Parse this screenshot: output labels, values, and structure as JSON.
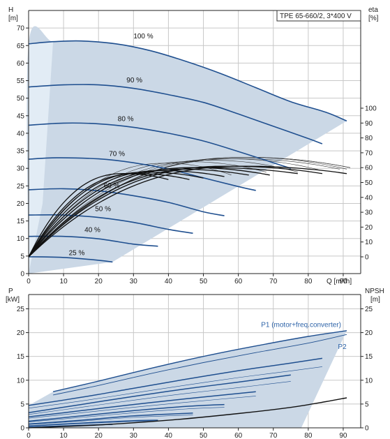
{
  "title": "TPE 65-660/2, 3*400 V",
  "colors": {
    "curve_blue": "#1f4f8f",
    "envelope_fill": "#cbd8e6",
    "envelope_edge": "#e2ecf5",
    "eta_line": "#333333",
    "black_curve": "#111111",
    "grid": "#c8c8c8",
    "label_blue": "#2d63a8"
  },
  "chart_data": [
    {
      "type": "line",
      "panel": "head-efficiency",
      "left_axis": {
        "label_line1": "H",
        "label_line2": "[m]",
        "ylim": [
          0,
          75
        ],
        "ticks": [
          0,
          5,
          10,
          15,
          20,
          25,
          30,
          35,
          40,
          45,
          50,
          55,
          60,
          65,
          70
        ]
      },
      "right_axis": {
        "label_line1": "eta",
        "label_line2": "[%]",
        "ticks": [
          0,
          10,
          20,
          30,
          40,
          50,
          60,
          70,
          80,
          90,
          100
        ]
      },
      "x_axis": {
        "label": "Q [m³/h]",
        "xlim": [
          0,
          95
        ],
        "ticks": [
          0,
          10,
          20,
          30,
          40,
          50,
          60,
          70,
          80,
          90
        ]
      },
      "speed_curves": [
        {
          "name": "100 %",
          "points": [
            [
              0,
              65.5
            ],
            [
              7,
              66.1
            ],
            [
              15,
              66.3
            ],
            [
              25,
              65.5
            ],
            [
              35,
              63.5
            ],
            [
              45,
              60.5
            ],
            [
              55,
              57
            ],
            [
              65,
              53
            ],
            [
              75,
              49
            ],
            [
              85,
              46
            ],
            [
              91,
              43.5
            ]
          ]
        },
        {
          "name": "90 %",
          "points": [
            [
              0,
              53.2
            ],
            [
              10,
              53.8
            ],
            [
              20,
              53.8
            ],
            [
              30,
              52.8
            ],
            [
              40,
              51
            ],
            [
              50,
              48.8
            ],
            [
              60,
              45.5
            ],
            [
              70,
              42
            ],
            [
              80,
              38.5
            ],
            [
              84,
              37
            ]
          ]
        },
        {
          "name": "80 %",
          "points": [
            [
              0,
              42.3
            ],
            [
              10,
              42.9
            ],
            [
              20,
              42.7
            ],
            [
              30,
              41.7
            ],
            [
              40,
              40
            ],
            [
              50,
              37.8
            ],
            [
              60,
              34.8
            ],
            [
              70,
              31.6
            ],
            [
              75,
              30
            ]
          ]
        },
        {
          "name": "70 %",
          "points": [
            [
              0,
              32.6
            ],
            [
              8,
              33
            ],
            [
              20,
              32.7
            ],
            [
              30,
              31.6
            ],
            [
              40,
              29.8
            ],
            [
              50,
              27.3
            ],
            [
              60,
              24.8
            ],
            [
              65,
              23.7
            ]
          ]
        },
        {
          "name": "60 %",
          "points": [
            [
              0,
              23.9
            ],
            [
              10,
              24.2
            ],
            [
              20,
              23.6
            ],
            [
              30,
              22.2
            ],
            [
              40,
              20.3
            ],
            [
              50,
              17.6
            ],
            [
              56,
              16.5
            ]
          ]
        },
        {
          "name": "50 %",
          "points": [
            [
              0,
              16.7
            ],
            [
              10,
              16.7
            ],
            [
              20,
              16
            ],
            [
              30,
              14.6
            ],
            [
              40,
              12.6
            ],
            [
              47,
              11.5
            ]
          ]
        },
        {
          "name": "40 %",
          "points": [
            [
              0,
              10.6
            ],
            [
              10,
              10.6
            ],
            [
              20,
              9.9
            ],
            [
              30,
              8.4
            ],
            [
              37,
              7.8
            ]
          ]
        },
        {
          "name": "25 %",
          "points": [
            [
              0,
              4.8
            ],
            [
              10,
              4.6
            ],
            [
              20,
              3.8
            ],
            [
              24,
              3.3
            ]
          ]
        }
      ],
      "curve_labels": [
        {
          "text": "100 %",
          "x": 30,
          "y": 67
        },
        {
          "text": "90 %",
          "x": 28,
          "y": 54.5
        },
        {
          "text": "80 %",
          "x": 25.5,
          "y": 43.5
        },
        {
          "text": "70 %",
          "x": 23,
          "y": 33.5
        },
        {
          "text": "60 %",
          "x": 21.5,
          "y": 24.5
        },
        {
          "text": "50 %",
          "x": 19,
          "y": 17.8
        },
        {
          "text": "40 %",
          "x": 16,
          "y": 11.8
        },
        {
          "text": "25 %",
          "x": 11.5,
          "y": 5.3
        }
      ],
      "envelope": [
        [
          0,
          0
        ],
        [
          0,
          65.5
        ],
        [
          7,
          66.1
        ],
        [
          15,
          66.3
        ],
        [
          25,
          65.5
        ],
        [
          35,
          63.5
        ],
        [
          45,
          60.5
        ],
        [
          55,
          57
        ],
        [
          65,
          53
        ],
        [
          75,
          49
        ],
        [
          85,
          46
        ],
        [
          91,
          43.5
        ],
        [
          24,
          3.3
        ],
        [
          0,
          0
        ]
      ],
      "eta_curves_percent": {
        "qmax": [
          58,
          68,
          77,
          84,
          89,
          91,
          92,
          92
        ],
        "peak": [
          63,
          64,
          65,
          66,
          66,
          67,
          67,
          67
        ],
        "end": [
          55,
          57,
          57,
          58,
          59,
          59,
          60,
          60
        ]
      },
      "black_curves_percent": {
        "qmax": [
          40,
          46,
          50,
          56,
          63,
          69,
          77,
          84,
          91
        ],
        "peak": [
          56,
          56,
          57,
          58,
          59,
          60,
          60,
          61,
          61
        ],
        "end": [
          52,
          52,
          53,
          54,
          55,
          55,
          56,
          56,
          56
        ]
      }
    },
    {
      "type": "line",
      "panel": "power-npsh",
      "left_axis": {
        "label_line1": "P",
        "label_line2": "[kW]",
        "ylim": [
          0,
          28
        ],
        "ticks": [
          0,
          5,
          10,
          15,
          20,
          25
        ]
      },
      "right_axis": {
        "label_line1": "NPSH",
        "label_line2": "[m]",
        "ticks": [
          0,
          5,
          10,
          15,
          20,
          25
        ]
      },
      "x_axis": {
        "xlim": [
          0,
          95
        ],
        "ticks": [
          0,
          10,
          20,
          30,
          40,
          50,
          60,
          70,
          80,
          90
        ]
      },
      "p1_curves": [
        {
          "name": "P1 (motor+freq.converter)",
          "points": [
            [
              7,
              7.6
            ],
            [
              20,
              9.8
            ],
            [
              35,
              12.5
            ],
            [
              50,
              15
            ],
            [
              65,
              17.2
            ],
            [
              80,
              19.2
            ],
            [
              91,
              20.4
            ]
          ]
        },
        {
          "name": "P2",
          "points": [
            [
              7,
              6.9
            ],
            [
              20,
              8.9
            ],
            [
              35,
              11.4
            ],
            [
              50,
              13.7
            ],
            [
              65,
              15.8
            ],
            [
              80,
              17.8
            ],
            [
              91,
              19.6
            ]
          ]
        },
        {
          "points": [
            [
              0,
              4.7
            ],
            [
              15,
              6.4
            ],
            [
              30,
              8.3
            ],
            [
              45,
              10.2
            ],
            [
              60,
              12
            ],
            [
              75,
              13.6
            ],
            [
              84,
              14.6
            ]
          ]
        },
        {
          "points": [
            [
              0,
              3.2
            ],
            [
              15,
              4.9
            ],
            [
              30,
              6.6
            ],
            [
              45,
              8.2
            ],
            [
              60,
              9.6
            ],
            [
              75,
              11.1
            ]
          ]
        },
        {
          "points": [
            [
              0,
              2.3
            ],
            [
              15,
              3.6
            ],
            [
              30,
              4.9
            ],
            [
              45,
              6.1
            ],
            [
              65,
              7.6
            ]
          ]
        },
        {
          "points": [
            [
              0,
              1.4
            ],
            [
              15,
              2.5
            ],
            [
              30,
              3.6
            ],
            [
              45,
              4.5
            ],
            [
              56,
              4.9
            ]
          ]
        },
        {
          "points": [
            [
              0,
              0.8
            ],
            [
              15,
              1.6
            ],
            [
              30,
              2.5
            ],
            [
              47,
              3.1
            ]
          ]
        },
        {
          "points": [
            [
              0,
              0.4
            ],
            [
              15,
              1
            ],
            [
              30,
              1.5
            ],
            [
              37,
              1.6
            ]
          ]
        },
        {
          "points": [
            [
              0,
              0.15
            ],
            [
              12,
              0.45
            ],
            [
              24,
              0.75
            ]
          ]
        }
      ],
      "p_envelope": [
        [
          7,
          7.6
        ],
        [
          20,
          9.8
        ],
        [
          35,
          12.5
        ],
        [
          50,
          15
        ],
        [
          65,
          17.2
        ],
        [
          80,
          19.2
        ],
        [
          91,
          20.4
        ],
        [
          78,
          0
        ],
        [
          0,
          0
        ],
        [
          0,
          4.7
        ]
      ],
      "npsh_curve": [
        [
          0,
          0
        ],
        [
          20,
          0.6
        ],
        [
          40,
          1.6
        ],
        [
          60,
          3
        ],
        [
          75,
          4.3
        ],
        [
          85,
          5.5
        ],
        [
          91,
          6.3
        ]
      ],
      "annotations": [
        {
          "text": "P1 (motor+freq.converter)",
          "x": 66.5,
          "y": 21.2
        },
        {
          "text": "P2",
          "x": 88.5,
          "y": 16.6
        }
      ]
    }
  ]
}
